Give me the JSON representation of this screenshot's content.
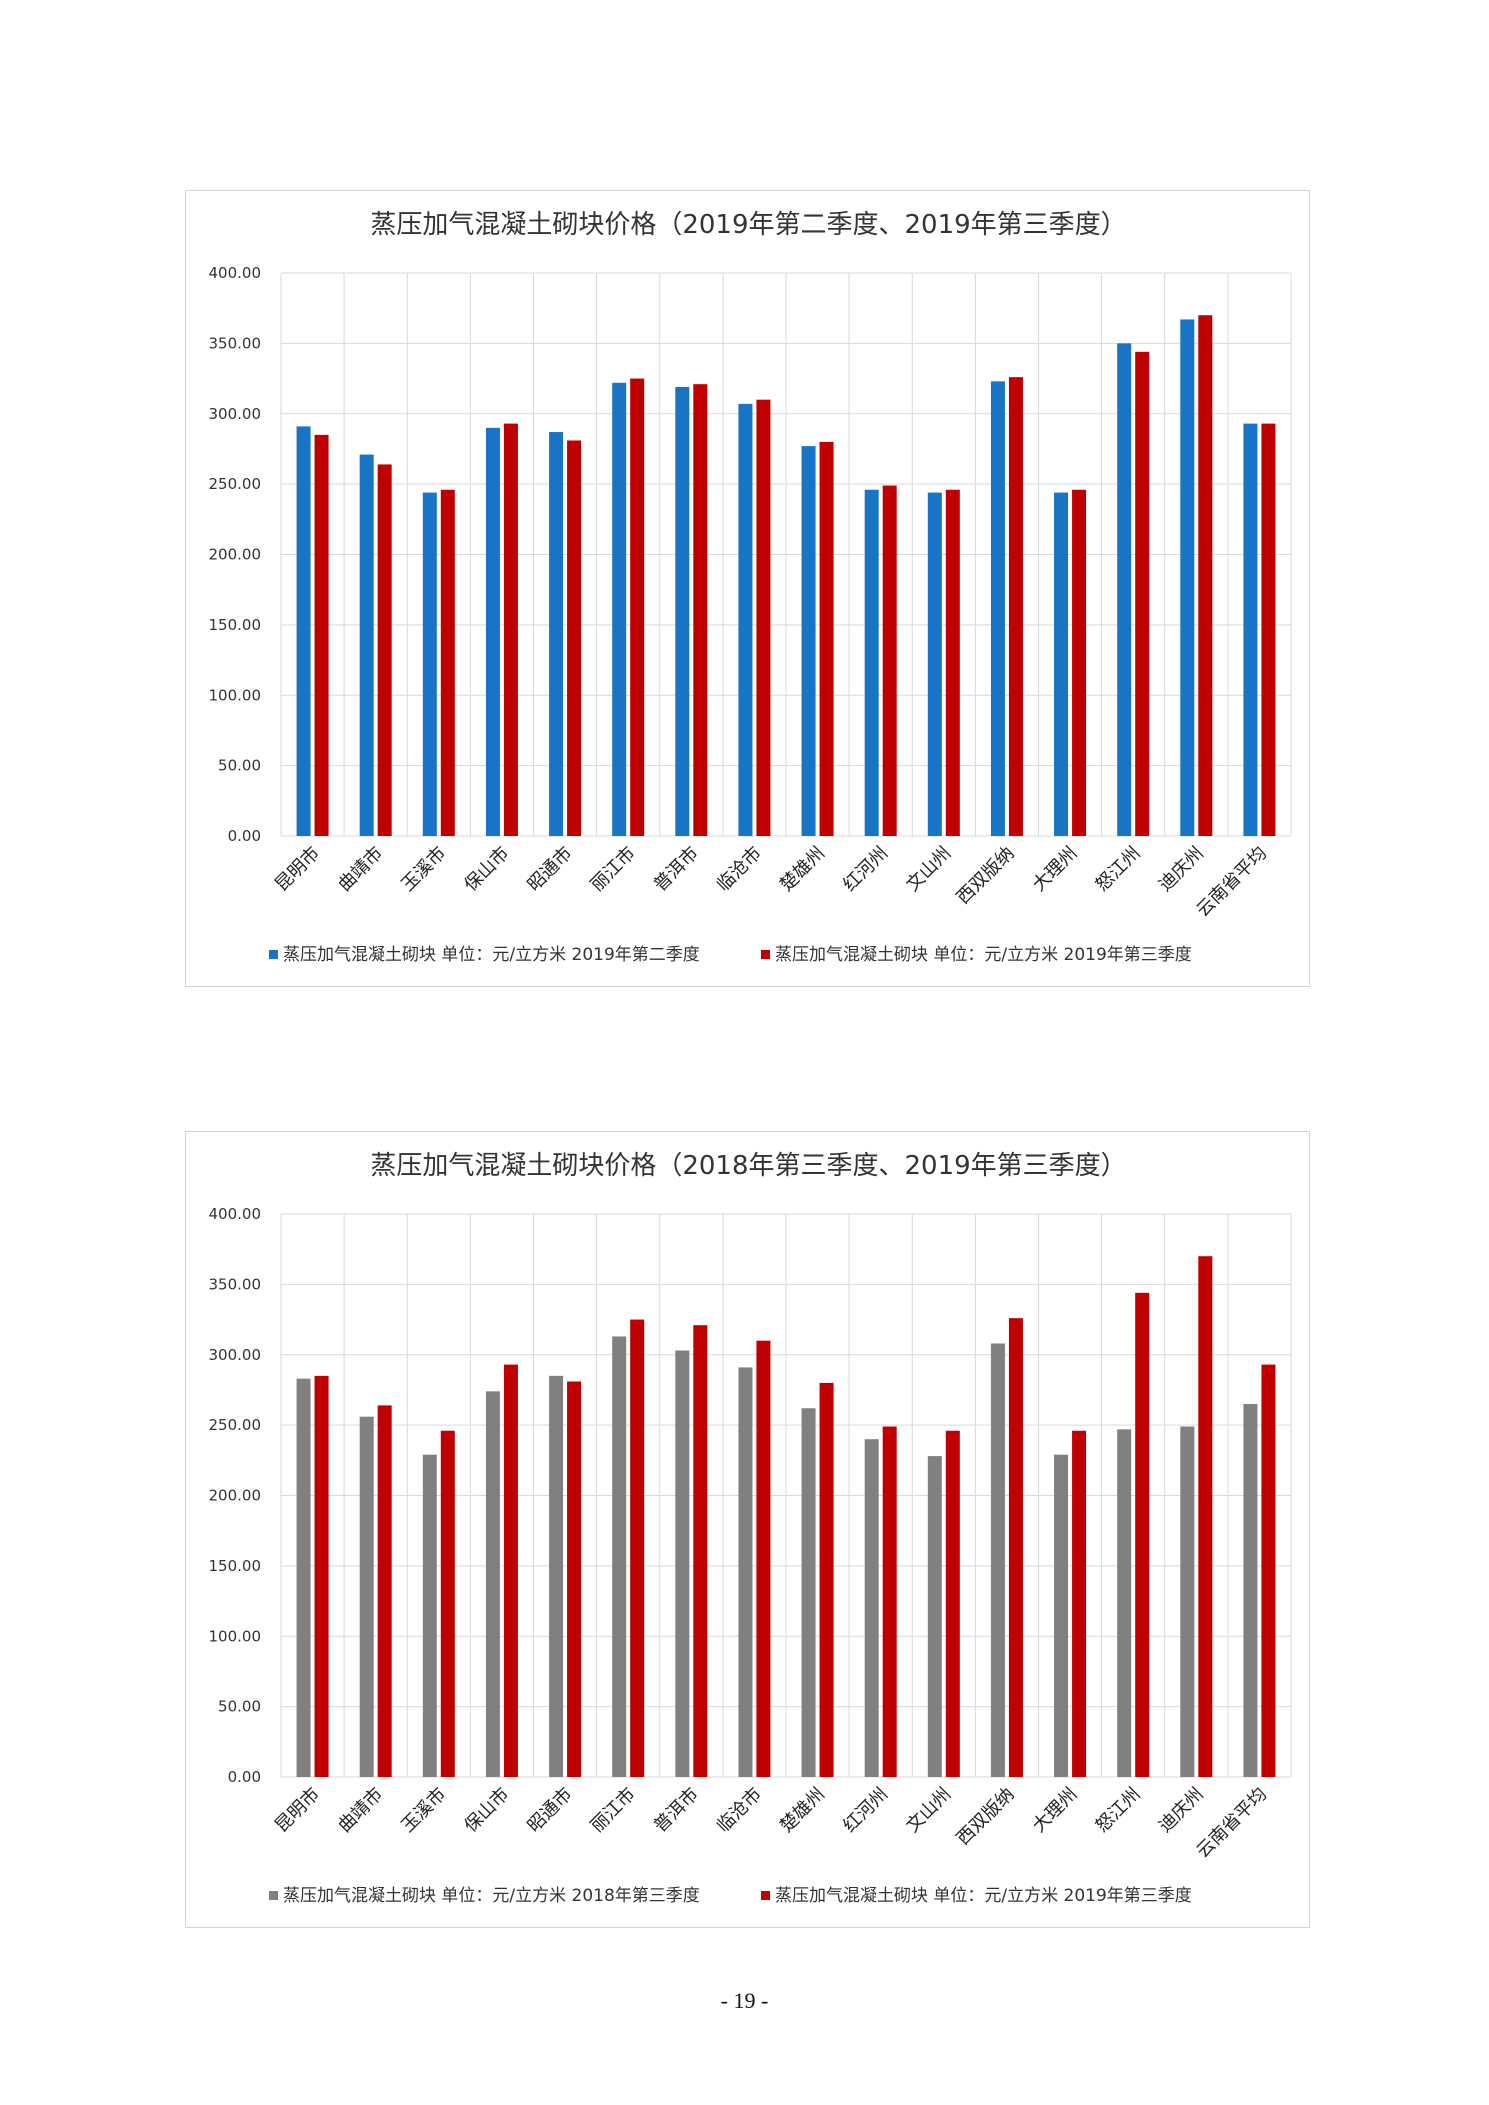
{
  "page": {
    "number": "- 19 -"
  },
  "chart_data": [
    {
      "type": "bar",
      "title": "蒸压加气混凝土砌块价格（2019年第二季度、2019年第三季度）",
      "categories": [
        "昆明市",
        "曲靖市",
        "玉溪市",
        "保山市",
        "昭通市",
        "丽江市",
        "普洱市",
        "临沧市",
        "楚雄州",
        "红河州",
        "文山州",
        "西双版纳",
        "大理州",
        "怒江州",
        "迪庆州",
        "云南省平均"
      ],
      "series": [
        {
          "name": "蒸压加气混凝土砌块 单位：元/立方米 2019年第二季度",
          "color": "#1874c4",
          "values": [
            291,
            271,
            244,
            290,
            287,
            322,
            319,
            307,
            277,
            246,
            244,
            323,
            244,
            350,
            367,
            293
          ]
        },
        {
          "name": "蒸压加气混凝土砌块 单位：元/立方米 2019年第三季度",
          "color": "#c00000",
          "values": [
            285,
            264,
            246,
            293,
            281,
            325,
            321,
            310,
            280,
            249,
            246,
            326,
            246,
            344,
            370,
            293
          ]
        }
      ],
      "yticks": [
        "0.00",
        "50.00",
        "100.00",
        "150.00",
        "200.00",
        "250.00",
        "300.00",
        "350.00",
        "400.00"
      ],
      "ylim": [
        0,
        400
      ],
      "grid": true,
      "legend_position": "bottom"
    },
    {
      "type": "bar",
      "title": "蒸压加气混凝土砌块价格（2018年第三季度、2019年第三季度）",
      "categories": [
        "昆明市",
        "曲靖市",
        "玉溪市",
        "保山市",
        "昭通市",
        "丽江市",
        "普洱市",
        "临沧市",
        "楚雄州",
        "红河州",
        "文山州",
        "西双版纳",
        "大理州",
        "怒江州",
        "迪庆州",
        "云南省平均"
      ],
      "series": [
        {
          "name": "蒸压加气混凝土砌块 单位：元/立方米 2018年第三季度",
          "color": "#808080",
          "values": [
            283,
            256,
            229,
            274,
            285,
            313,
            303,
            291,
            262,
            240,
            228,
            308,
            229,
            247,
            249,
            265
          ]
        },
        {
          "name": "蒸压加气混凝土砌块 单位：元/立方米 2019年第三季度",
          "color": "#c00000",
          "values": [
            285,
            264,
            246,
            293,
            281,
            325,
            321,
            310,
            280,
            249,
            246,
            326,
            246,
            344,
            370,
            293
          ]
        }
      ],
      "yticks": [
        "0.00",
        "50.00",
        "100.00",
        "150.00",
        "200.00",
        "250.00",
        "300.00",
        "350.00",
        "400.00"
      ],
      "ylim": [
        0,
        400
      ],
      "grid": true,
      "legend_position": "bottom"
    }
  ]
}
